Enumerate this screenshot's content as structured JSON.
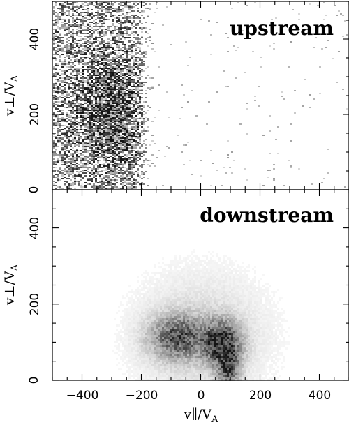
{
  "chart_data": [
    {
      "type": "heatmap",
      "title": "upstream",
      "xlabel": "",
      "ylabel": "v⊥/V_A",
      "xlim": [
        -500,
        500
      ],
      "ylim": [
        0,
        500
      ],
      "xticks": [
        -400,
        -200,
        0,
        200,
        400
      ],
      "yticks": [
        0,
        200,
        400
      ],
      "x_tick_labels": [],
      "y_tick_labels": [
        "0",
        "200",
        "400"
      ],
      "grid": false,
      "distribution": {
        "description_values": {
          "x_range_dense": [
            -500,
            -180
          ],
          "y_range_dense": [
            0,
            500
          ],
          "peak": {
            "x": -300,
            "y": 200
          },
          "sparse_tail_x": [
            -180,
            430
          ]
        }
      }
    },
    {
      "type": "heatmap",
      "title": "downstream",
      "xlabel": "v∥/V_A",
      "ylabel": "v⊥/V_A",
      "xlim": [
        -500,
        500
      ],
      "ylim": [
        0,
        500
      ],
      "xticks": [
        -400,
        -200,
        0,
        200,
        400
      ],
      "yticks": [
        0,
        200,
        400
      ],
      "x_tick_labels": [
        "−400",
        "−200",
        "0",
        "200",
        "400"
      ],
      "y_tick_labels": [
        "0",
        "200",
        "400"
      ],
      "grid": false,
      "distribution": {
        "description_values": {
          "peak": {
            "x": 70,
            "y": 100
          },
          "secondary_blob": {
            "x": -80,
            "y": 120
          },
          "x_range_dense": [
            -200,
            220
          ],
          "y_range_dense": [
            0,
            220
          ]
        }
      }
    }
  ],
  "labels": {
    "ylabel_main": "v⊥/V",
    "ylabel_sub": "A",
    "xlabel_main": "v∥/V",
    "xlabel_sub": "A",
    "upstream": "upstream",
    "downstream": "downstream"
  }
}
